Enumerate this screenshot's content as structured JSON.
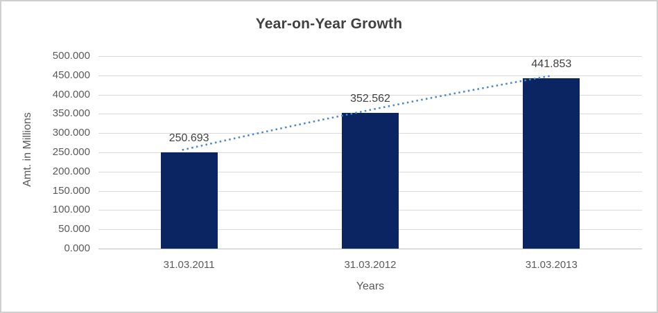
{
  "chart_data": {
    "type": "bar",
    "title": "Year-on-Year Growth",
    "xlabel": "Years",
    "ylabel": "Amt. in Millions",
    "categories": [
      "31.03.2011",
      "31.03.2012",
      "31.03.2013"
    ],
    "values": [
      250.693,
      352.562,
      441.853
    ],
    "value_labels": [
      "250.693",
      "352.562",
      "441.853"
    ],
    "ylim": [
      0,
      500
    ],
    "ytick_step": 50,
    "ytick_labels": [
      "0.000",
      "50.000",
      "100.000",
      "150.000",
      "200.000",
      "250.000",
      "300.000",
      "350.000",
      "400.000",
      "450.000",
      "500.000"
    ],
    "grid": true,
    "legend_position": "none",
    "trendline": {
      "style": "dotted",
      "color": "#4a87cd"
    },
    "colors": {
      "bar": "#0a2562",
      "gridline": "#d9d9d9",
      "axis_line": "#bfbfbf",
      "title_text": "#404040",
      "tick_text": "#595959",
      "data_label_text": "#404040",
      "frame_border": "#cfcfcf",
      "background": "#ffffff"
    }
  }
}
